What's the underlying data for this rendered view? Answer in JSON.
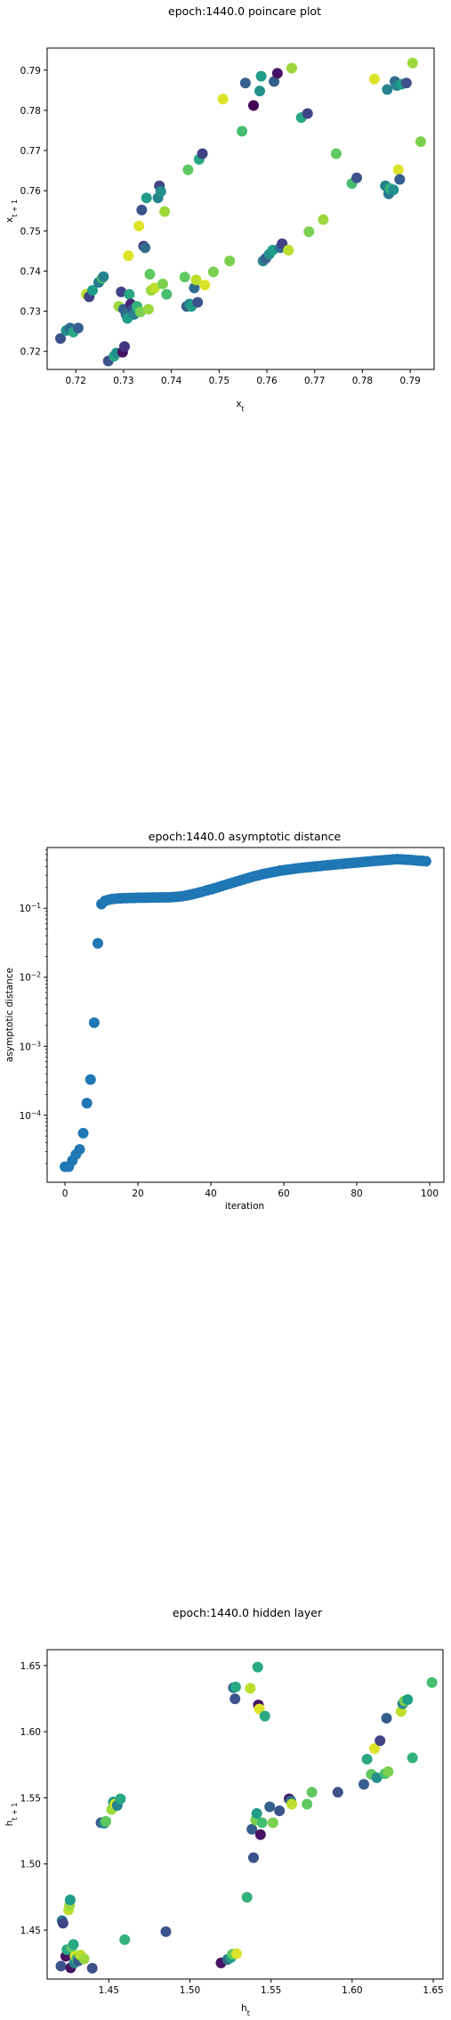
{
  "chart_data": [
    {
      "type": "scatter",
      "title": "epoch:1440.0 poincare plot",
      "xlabel": "x_t",
      "ylabel": "x_{t+1}",
      "xlim": [
        0.714,
        0.795
      ],
      "ylim": [
        0.7155,
        0.7955
      ],
      "xticks": [
        "0.72",
        "0.73",
        "0.74",
        "0.75",
        "0.76",
        "0.77",
        "0.78",
        "0.79"
      ],
      "yticks": [
        "0.72",
        "0.73",
        "0.74",
        "0.75",
        "0.76",
        "0.77",
        "0.78",
        "0.79"
      ],
      "grid": false,
      "colormap": "viridis",
      "points": [
        {
          "x": 0.7168,
          "y": 0.7232,
          "c": 0.25
        },
        {
          "x": 0.718,
          "y": 0.7252,
          "c": 0.5
        },
        {
          "x": 0.7188,
          "y": 0.7258,
          "c": 0.35
        },
        {
          "x": 0.7195,
          "y": 0.7248,
          "c": 0.6
        },
        {
          "x": 0.7205,
          "y": 0.7258,
          "c": 0.3
        },
        {
          "x": 0.7222,
          "y": 0.7342,
          "c": 0.9
        },
        {
          "x": 0.7228,
          "y": 0.7336,
          "c": 0.2
        },
        {
          "x": 0.7235,
          "y": 0.7352,
          "c": 0.55
        },
        {
          "x": 0.7248,
          "y": 0.7372,
          "c": 0.4
        },
        {
          "x": 0.7255,
          "y": 0.7382,
          "c": 0.7
        },
        {
          "x": 0.7258,
          "y": 0.7386,
          "c": 0.45
        },
        {
          "x": 0.7268,
          "y": 0.7176,
          "c": 0.25
        },
        {
          "x": 0.728,
          "y": 0.7188,
          "c": 0.6
        },
        {
          "x": 0.7285,
          "y": 0.7196,
          "c": 0.5
        },
        {
          "x": 0.729,
          "y": 0.7312,
          "c": 0.85
        },
        {
          "x": 0.7295,
          "y": 0.7348,
          "c": 0.2
        },
        {
          "x": 0.7298,
          "y": 0.7198,
          "c": 0.05
        },
        {
          "x": 0.7302,
          "y": 0.7212,
          "c": 0.15
        },
        {
          "x": 0.73,
          "y": 0.7305,
          "c": 0.3
        },
        {
          "x": 0.7305,
          "y": 0.7292,
          "c": 0.35
        },
        {
          "x": 0.7308,
          "y": 0.7282,
          "c": 0.55
        },
        {
          "x": 0.731,
          "y": 0.7438,
          "c": 0.95
        },
        {
          "x": 0.7312,
          "y": 0.7342,
          "c": 0.6
        },
        {
          "x": 0.7315,
          "y": 0.7318,
          "c": 0.1
        },
        {
          "x": 0.732,
          "y": 0.7305,
          "c": 0.25
        },
        {
          "x": 0.7322,
          "y": 0.7292,
          "c": 0.45
        },
        {
          "x": 0.7328,
          "y": 0.7312,
          "c": 0.65
        },
        {
          "x": 0.7332,
          "y": 0.7512,
          "c": 0.95
        },
        {
          "x": 0.7335,
          "y": 0.7298,
          "c": 0.8
        },
        {
          "x": 0.7338,
          "y": 0.7552,
          "c": 0.25
        },
        {
          "x": 0.7342,
          "y": 0.7462,
          "c": 0.15
        },
        {
          "x": 0.7345,
          "y": 0.7458,
          "c": 0.35
        },
        {
          "x": 0.7348,
          "y": 0.7582,
          "c": 0.55
        },
        {
          "x": 0.7352,
          "y": 0.7305,
          "c": 0.85
        },
        {
          "x": 0.7355,
          "y": 0.7392,
          "c": 0.75
        },
        {
          "x": 0.7358,
          "y": 0.7352,
          "c": 0.85
        },
        {
          "x": 0.7365,
          "y": 0.7358,
          "c": 0.9
        },
        {
          "x": 0.7372,
          "y": 0.7582,
          "c": 0.45
        },
        {
          "x": 0.7375,
          "y": 0.7612,
          "c": 0.2
        },
        {
          "x": 0.7378,
          "y": 0.7598,
          "c": 0.5
        },
        {
          "x": 0.7382,
          "y": 0.7368,
          "c": 0.8
        },
        {
          "x": 0.7386,
          "y": 0.7548,
          "c": 0.85
        },
        {
          "x": 0.739,
          "y": 0.7342,
          "c": 0.7
        },
        {
          "x": 0.7428,
          "y": 0.7385,
          "c": 0.75
        },
        {
          "x": 0.7432,
          "y": 0.7312,
          "c": 0.3
        },
        {
          "x": 0.7435,
          "y": 0.7652,
          "c": 0.75
        },
        {
          "x": 0.7438,
          "y": 0.7318,
          "c": 0.45
        },
        {
          "x": 0.7442,
          "y": 0.7312,
          "c": 0.55
        },
        {
          "x": 0.7448,
          "y": 0.7358,
          "c": 0.35
        },
        {
          "x": 0.7452,
          "y": 0.7378,
          "c": 0.9
        },
        {
          "x": 0.7455,
          "y": 0.7322,
          "c": 0.25
        },
        {
          "x": 0.7458,
          "y": 0.7678,
          "c": 0.6
        },
        {
          "x": 0.7465,
          "y": 0.7692,
          "c": 0.2
        },
        {
          "x": 0.747,
          "y": 0.7365,
          "c": 0.95
        },
        {
          "x": 0.7488,
          "y": 0.7398,
          "c": 0.8
        },
        {
          "x": 0.7508,
          "y": 0.7828,
          "c": 0.95
        },
        {
          "x": 0.7522,
          "y": 0.7425,
          "c": 0.8
        },
        {
          "x": 0.7548,
          "y": 0.7748,
          "c": 0.7
        },
        {
          "x": 0.7555,
          "y": 0.7868,
          "c": 0.3
        },
        {
          "x": 0.7572,
          "y": 0.7812,
          "c": 0.0
        },
        {
          "x": 0.7585,
          "y": 0.7848,
          "c": 0.5
        },
        {
          "x": 0.7588,
          "y": 0.7885,
          "c": 0.55
        },
        {
          "x": 0.7592,
          "y": 0.7425,
          "c": 0.45
        },
        {
          "x": 0.7598,
          "y": 0.7432,
          "c": 0.3
        },
        {
          "x": 0.7605,
          "y": 0.7442,
          "c": 0.5
        },
        {
          "x": 0.7612,
          "y": 0.7452,
          "c": 0.55
        },
        {
          "x": 0.7615,
          "y": 0.7872,
          "c": 0.3
        },
        {
          "x": 0.7622,
          "y": 0.7892,
          "c": 0.05
        },
        {
          "x": 0.7628,
          "y": 0.7458,
          "c": 0.35
        },
        {
          "x": 0.7632,
          "y": 0.7468,
          "c": 0.2
        },
        {
          "x": 0.7645,
          "y": 0.7452,
          "c": 0.9
        },
        {
          "x": 0.7652,
          "y": 0.7905,
          "c": 0.85
        },
        {
          "x": 0.7672,
          "y": 0.7782,
          "c": 0.6
        },
        {
          "x": 0.7685,
          "y": 0.7792,
          "c": 0.2
        },
        {
          "x": 0.7688,
          "y": 0.7498,
          "c": 0.8
        },
        {
          "x": 0.7718,
          "y": 0.7528,
          "c": 0.85
        },
        {
          "x": 0.7745,
          "y": 0.7692,
          "c": 0.75
        },
        {
          "x": 0.7778,
          "y": 0.7618,
          "c": 0.7
        },
        {
          "x": 0.7788,
          "y": 0.7632,
          "c": 0.25
        },
        {
          "x": 0.7825,
          "y": 0.7878,
          "c": 0.95
        },
        {
          "x": 0.7848,
          "y": 0.7612,
          "c": 0.45
        },
        {
          "x": 0.7852,
          "y": 0.7852,
          "c": 0.45
        },
        {
          "x": 0.7855,
          "y": 0.7592,
          "c": 0.4
        },
        {
          "x": 0.7858,
          "y": 0.7605,
          "c": 0.65
        },
        {
          "x": 0.7865,
          "y": 0.7602,
          "c": 0.5
        },
        {
          "x": 0.7868,
          "y": 0.7872,
          "c": 0.35
        },
        {
          "x": 0.7872,
          "y": 0.7862,
          "c": 0.45
        },
        {
          "x": 0.7875,
          "y": 0.7652,
          "c": 0.95
        },
        {
          "x": 0.7878,
          "y": 0.7628,
          "c": 0.3
        },
        {
          "x": 0.7882,
          "y": 0.7865,
          "c": 0.55
        },
        {
          "x": 0.7892,
          "y": 0.7868,
          "c": 0.25
        },
        {
          "x": 0.7905,
          "y": 0.7918,
          "c": 0.85
        },
        {
          "x": 0.7922,
          "y": 0.7722,
          "c": 0.8
        }
      ]
    },
    {
      "type": "scatter",
      "title": "epoch:1440.0 asymptotic distance",
      "xlabel": "iteration",
      "ylabel": "asymptotic distance",
      "yscale": "log",
      "xlim": [
        -4.9,
        103.9
      ],
      "ylim_log10": [
        -4.97,
        -0.12
      ],
      "xticks": [
        "0",
        "20",
        "40",
        "60",
        "80",
        "100"
      ],
      "yticks": [
        "10^{-4}",
        "10^{-3}",
        "10^{-2}",
        "10^{-1}"
      ],
      "grid": false,
      "color": "#1f77b4",
      "x": [
        0,
        1,
        2,
        3,
        4,
        5,
        6,
        7,
        8,
        9,
        10,
        11,
        12,
        13,
        14,
        15,
        16,
        17,
        18,
        19,
        20,
        21,
        22,
        23,
        24,
        25,
        26,
        27,
        28,
        29,
        30,
        31,
        32,
        33,
        34,
        35,
        36,
        37,
        38,
        39,
        40,
        41,
        42,
        43,
        44,
        45,
        46,
        47,
        48,
        49,
        50,
        51,
        52,
        53,
        54,
        55,
        56,
        57,
        58,
        59,
        60,
        61,
        62,
        63,
        64,
        65,
        66,
        67,
        68,
        69,
        70,
        71,
        72,
        73,
        74,
        75,
        76,
        77,
        78,
        79,
        80,
        81,
        82,
        83,
        84,
        85,
        86,
        87,
        88,
        89,
        90,
        91,
        92,
        93,
        94,
        95,
        96,
        97,
        98,
        99
      ],
      "y": [
        1.8e-05,
        1.8e-05,
        2.2e-05,
        2.7e-05,
        3.2e-05,
        5.5e-05,
        0.00015,
        0.00033,
        0.0022,
        0.031,
        0.115,
        0.128,
        0.133,
        0.136,
        0.138,
        0.139,
        0.14,
        0.14,
        0.141,
        0.141,
        0.142,
        0.142,
        0.142,
        0.143,
        0.143,
        0.143,
        0.144,
        0.144,
        0.144,
        0.145,
        0.146,
        0.147,
        0.149,
        0.152,
        0.156,
        0.16,
        0.165,
        0.17,
        0.176,
        0.182,
        0.188,
        0.195,
        0.202,
        0.21,
        0.218,
        0.226,
        0.235,
        0.244,
        0.253,
        0.262,
        0.272,
        0.282,
        0.292,
        0.3,
        0.31,
        0.318,
        0.326,
        0.334,
        0.342,
        0.35,
        0.356,
        0.362,
        0.368,
        0.374,
        0.38,
        0.386,
        0.39,
        0.395,
        0.4,
        0.405,
        0.41,
        0.415,
        0.42,
        0.425,
        0.43,
        0.435,
        0.44,
        0.445,
        0.45,
        0.455,
        0.46,
        0.465,
        0.47,
        0.475,
        0.48,
        0.485,
        0.49,
        0.495,
        0.5,
        0.505,
        0.51,
        0.515,
        0.512,
        0.508,
        0.505,
        0.5,
        0.495,
        0.49,
        0.485,
        0.48
      ]
    },
    {
      "type": "scatter",
      "title": "epoch:1440.0 hidden layer",
      "xlabel": "h_t",
      "ylabel": "h_{t+1}",
      "xlim": [
        1.412,
        1.656
      ],
      "ylim": [
        1.413,
        1.662
      ],
      "xticks": [
        "1.45",
        "1.50",
        "1.55",
        "1.60",
        "1.65"
      ],
      "yticks": [
        "1.45",
        "1.50",
        "1.55",
        "1.60",
        "1.65"
      ],
      "grid": false,
      "colormap": "viridis",
      "points": [
        {
          "x": 1.4205,
          "y": 1.4228,
          "c": 0.25
        },
        {
          "x": 1.4212,
          "y": 1.4572,
          "c": 0.4
        },
        {
          "x": 1.4218,
          "y": 1.4552,
          "c": 0.2
        },
        {
          "x": 1.4235,
          "y": 1.4302,
          "c": 0.05
        },
        {
          "x": 1.4242,
          "y": 1.4352,
          "c": 0.6
        },
        {
          "x": 1.4252,
          "y": 1.4652,
          "c": 0.9
        },
        {
          "x": 1.4258,
          "y": 1.4688,
          "c": 0.85
        },
        {
          "x": 1.4262,
          "y": 1.4728,
          "c": 0.55
        },
        {
          "x": 1.4265,
          "y": 1.4215,
          "c": 0.05
        },
        {
          "x": 1.4272,
          "y": 1.4368,
          "c": 0.75
        },
        {
          "x": 1.4282,
          "y": 1.4392,
          "c": 0.6
        },
        {
          "x": 1.4288,
          "y": 1.4252,
          "c": 0.45
        },
        {
          "x": 1.4292,
          "y": 1.4302,
          "c": 0.95
        },
        {
          "x": 1.4302,
          "y": 1.4282,
          "c": 0.7
        },
        {
          "x": 1.4312,
          "y": 1.4268,
          "c": 0.3
        },
        {
          "x": 1.4325,
          "y": 1.4312,
          "c": 0.9
        },
        {
          "x": 1.4348,
          "y": 1.4282,
          "c": 0.85
        },
        {
          "x": 1.4398,
          "y": 1.4212,
          "c": 0.25
        },
        {
          "x": 1.4452,
          "y": 1.5312,
          "c": 0.3
        },
        {
          "x": 1.4472,
          "y": 1.5308,
          "c": 0.5
        },
        {
          "x": 1.4482,
          "y": 1.5322,
          "c": 0.75
        },
        {
          "x": 1.4518,
          "y": 1.5412,
          "c": 0.85
        },
        {
          "x": 1.4528,
          "y": 1.5468,
          "c": 0.55
        },
        {
          "x": 1.4538,
          "y": 1.5452,
          "c": 0.95
        },
        {
          "x": 1.4552,
          "y": 1.5442,
          "c": 0.45
        },
        {
          "x": 1.4572,
          "y": 1.5492,
          "c": 0.6
        },
        {
          "x": 1.4598,
          "y": 1.4428,
          "c": 0.65
        },
        {
          "x": 1.4852,
          "y": 1.4488,
          "c": 0.25
        },
        {
          "x": 1.5192,
          "y": 1.4252,
          "c": 0.05
        },
        {
          "x": 1.5232,
          "y": 1.4278,
          "c": 0.35
        },
        {
          "x": 1.5252,
          "y": 1.4292,
          "c": 0.55
        },
        {
          "x": 1.5262,
          "y": 1.4318,
          "c": 0.75
        },
        {
          "x": 1.5268,
          "y": 1.6332,
          "c": 0.35
        },
        {
          "x": 1.5278,
          "y": 1.6248,
          "c": 0.25
        },
        {
          "x": 1.5282,
          "y": 1.6338,
          "c": 0.6
        },
        {
          "x": 1.5288,
          "y": 1.4322,
          "c": 0.95
        },
        {
          "x": 1.5352,
          "y": 1.4748,
          "c": 0.65
        },
        {
          "x": 1.5372,
          "y": 1.6328,
          "c": 0.9
        },
        {
          "x": 1.5382,
          "y": 1.5262,
          "c": 0.3
        },
        {
          "x": 1.5392,
          "y": 1.5048,
          "c": 0.25
        },
        {
          "x": 1.5405,
          "y": 1.5332,
          "c": 0.8
        },
        {
          "x": 1.5412,
          "y": 1.5382,
          "c": 0.55
        },
        {
          "x": 1.5418,
          "y": 1.6488,
          "c": 0.6
        },
        {
          "x": 1.5422,
          "y": 1.6202,
          "c": 0.05
        },
        {
          "x": 1.5428,
          "y": 1.6172,
          "c": 0.95
        },
        {
          "x": 1.5435,
          "y": 1.5222,
          "c": 0.05
        },
        {
          "x": 1.5445,
          "y": 1.5312,
          "c": 0.7
        },
        {
          "x": 1.5462,
          "y": 1.6118,
          "c": 0.6
        },
        {
          "x": 1.5492,
          "y": 1.5432,
          "c": 0.3
        },
        {
          "x": 1.5512,
          "y": 1.5312,
          "c": 0.8
        },
        {
          "x": 1.5552,
          "y": 1.5402,
          "c": 0.25
        },
        {
          "x": 1.5612,
          "y": 1.5492,
          "c": 0.05
        },
        {
          "x": 1.5622,
          "y": 1.5478,
          "c": 0.35
        },
        {
          "x": 1.5628,
          "y": 1.5452,
          "c": 0.9
        },
        {
          "x": 1.5722,
          "y": 1.5452,
          "c": 0.75
        },
        {
          "x": 1.5752,
          "y": 1.5542,
          "c": 0.75
        },
        {
          "x": 1.5912,
          "y": 1.5542,
          "c": 0.25
        },
        {
          "x": 1.6072,
          "y": 1.5602,
          "c": 0.3
        },
        {
          "x": 1.6092,
          "y": 1.5792,
          "c": 0.6
        },
        {
          "x": 1.6118,
          "y": 1.5678,
          "c": 0.75
        },
        {
          "x": 1.6138,
          "y": 1.5872,
          "c": 0.95
        },
        {
          "x": 1.6152,
          "y": 1.5652,
          "c": 0.5
        },
        {
          "x": 1.6172,
          "y": 1.5932,
          "c": 0.2
        },
        {
          "x": 1.6212,
          "y": 1.6102,
          "c": 0.3
        },
        {
          "x": 1.6202,
          "y": 1.5682,
          "c": 0.7
        },
        {
          "x": 1.6222,
          "y": 1.5698,
          "c": 0.8
        },
        {
          "x": 1.6302,
          "y": 1.6152,
          "c": 0.9
        },
        {
          "x": 1.6312,
          "y": 1.6212,
          "c": 0.45
        },
        {
          "x": 1.6322,
          "y": 1.6232,
          "c": 0.8
        },
        {
          "x": 1.6342,
          "y": 1.6242,
          "c": 0.55
        },
        {
          "x": 1.6372,
          "y": 1.5802,
          "c": 0.65
        },
        {
          "x": 1.6492,
          "y": 1.6372,
          "c": 0.7
        }
      ]
    }
  ]
}
